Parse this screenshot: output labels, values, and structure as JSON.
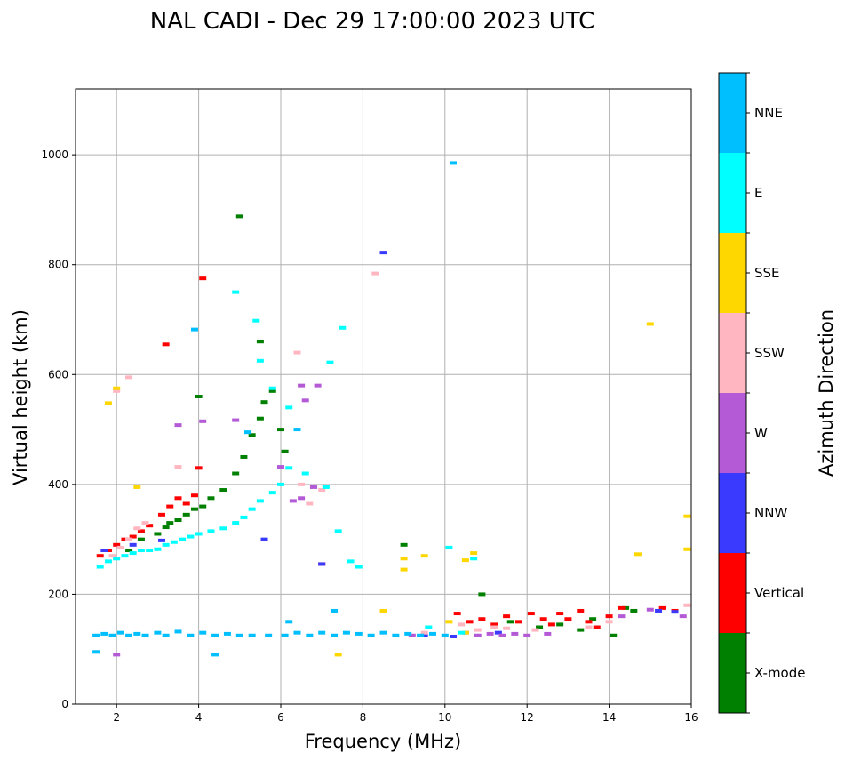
{
  "chart_data": {
    "type": "scatter",
    "title": "NAL CADI - Dec 29 17:00:00 2023 UTC",
    "xlabel": "Frequency (MHz)",
    "ylabel": "Virtual height (km)",
    "xlim": [
      1,
      16
    ],
    "ylim": [
      0,
      1120
    ],
    "x_ticks": [
      2,
      4,
      6,
      8,
      10,
      12,
      14,
      16
    ],
    "y_ticks": [
      0,
      200,
      400,
      600,
      800,
      1000
    ],
    "grid": true,
    "colorbar": {
      "label": "Azimuth Direction",
      "categories": [
        {
          "name": "X-mode",
          "color": "#008000"
        },
        {
          "name": "Vertical",
          "color": "#ff0000"
        },
        {
          "name": "NNW",
          "color": "#3a3aff"
        },
        {
          "name": "W",
          "color": "#b45ad6"
        },
        {
          "name": "SSW",
          "color": "#ffb6c1"
        },
        {
          "name": "SSE",
          "color": "#ffd700"
        },
        {
          "name": "E",
          "color": "#00ffff"
        },
        {
          "name": "NNE",
          "color": "#00bfff"
        }
      ]
    },
    "series": [
      {
        "name": "X-mode",
        "points": [
          [
            3.3,
            330
          ],
          [
            3.5,
            335
          ],
          [
            3.7,
            345
          ],
          [
            3.9,
            355
          ],
          [
            4.1,
            360
          ],
          [
            4.3,
            375
          ],
          [
            4.6,
            390
          ],
          [
            4.9,
            420
          ],
          [
            5.1,
            450
          ],
          [
            5.3,
            490
          ],
          [
            5.5,
            520
          ],
          [
            5.6,
            550
          ],
          [
            5.8,
            570
          ],
          [
            6.0,
            500
          ],
          [
            6.1,
            460
          ],
          [
            3.0,
            310
          ],
          [
            3.2,
            322
          ],
          [
            10.9,
            200
          ],
          [
            11.6,
            150
          ],
          [
            12.3,
            140
          ],
          [
            12.8,
            145
          ],
          [
            13.3,
            135
          ],
          [
            13.6,
            155
          ],
          [
            14.1,
            125
          ],
          [
            14.4,
            175
          ],
          [
            14.6,
            170
          ],
          [
            9.0,
            290
          ],
          [
            4.0,
            560
          ],
          [
            5.0,
            888
          ],
          [
            5.5,
            660
          ],
          [
            2.3,
            280
          ],
          [
            2.6,
            300
          ]
        ]
      },
      {
        "name": "Vertical",
        "points": [
          [
            1.6,
            270
          ],
          [
            1.8,
            280
          ],
          [
            2.0,
            290
          ],
          [
            2.2,
            300
          ],
          [
            2.4,
            305
          ],
          [
            2.6,
            315
          ],
          [
            2.8,
            325
          ],
          [
            3.1,
            345
          ],
          [
            3.3,
            360
          ],
          [
            3.5,
            375
          ],
          [
            3.7,
            365
          ],
          [
            3.9,
            380
          ],
          [
            4.0,
            430
          ],
          [
            4.1,
            775
          ],
          [
            3.2,
            655
          ],
          [
            10.3,
            165
          ],
          [
            10.6,
            150
          ],
          [
            10.9,
            155
          ],
          [
            11.2,
            145
          ],
          [
            11.5,
            160
          ],
          [
            11.8,
            150
          ],
          [
            12.1,
            165
          ],
          [
            12.4,
            155
          ],
          [
            12.6,
            145
          ],
          [
            12.8,
            165
          ],
          [
            13.0,
            155
          ],
          [
            13.3,
            170
          ],
          [
            13.5,
            150
          ],
          [
            13.7,
            140
          ],
          [
            14.0,
            160
          ],
          [
            14.3,
            175
          ],
          [
            15.3,
            175
          ],
          [
            15.6,
            170
          ],
          [
            7.0,
            255
          ]
        ]
      },
      {
        "name": "NNW",
        "points": [
          [
            1.7,
            280
          ],
          [
            2.4,
            290
          ],
          [
            8.5,
            822
          ],
          [
            7.0,
            255
          ],
          [
            15.2,
            170
          ],
          [
            15.6,
            168
          ],
          [
            9.5,
            125
          ],
          [
            10.2,
            123
          ],
          [
            11.3,
            130
          ],
          [
            3.1,
            298
          ],
          [
            5.6,
            300
          ]
        ]
      },
      {
        "name": "W",
        "points": [
          [
            3.5,
            508
          ],
          [
            4.1,
            515
          ],
          [
            6.5,
            580
          ],
          [
            6.6,
            553
          ],
          [
            6.8,
            395
          ],
          [
            6.5,
            375
          ],
          [
            6.9,
            580
          ],
          [
            10.5,
            130
          ],
          [
            10.8,
            125
          ],
          [
            11.1,
            128
          ],
          [
            11.4,
            125
          ],
          [
            11.7,
            128
          ],
          [
            12.0,
            125
          ],
          [
            12.5,
            128
          ],
          [
            14.3,
            160
          ],
          [
            15.0,
            172
          ],
          [
            15.8,
            160
          ],
          [
            9.2,
            125
          ],
          [
            2.0,
            90
          ],
          [
            4.9,
            517
          ],
          [
            6.0,
            432
          ],
          [
            6.3,
            370
          ]
        ]
      },
      {
        "name": "SSW",
        "points": [
          [
            1.9,
            270
          ],
          [
            2.1,
            285
          ],
          [
            2.3,
            300
          ],
          [
            2.5,
            320
          ],
          [
            2.7,
            330
          ],
          [
            2.3,
            595
          ],
          [
            3.5,
            432
          ],
          [
            6.5,
            400
          ],
          [
            7.0,
            390
          ],
          [
            8.3,
            784
          ],
          [
            6.4,
            640
          ],
          [
            6.7,
            365
          ],
          [
            10.4,
            145
          ],
          [
            10.8,
            135
          ],
          [
            11.2,
            140
          ],
          [
            11.5,
            138
          ],
          [
            12.2,
            135
          ],
          [
            13.5,
            140
          ],
          [
            14.0,
            150
          ],
          [
            15.9,
            180
          ],
          [
            9.5,
            130
          ],
          [
            2.0,
            570
          ]
        ]
      },
      {
        "name": "SSE",
        "points": [
          [
            1.8,
            548
          ],
          [
            2.0,
            575
          ],
          [
            2.5,
            395
          ],
          [
            8.5,
            170
          ],
          [
            9.0,
            265
          ],
          [
            9.0,
            245
          ],
          [
            9.5,
            270
          ],
          [
            10.5,
            262
          ],
          [
            10.7,
            275
          ],
          [
            14.7,
            273
          ],
          [
            15.0,
            692
          ],
          [
            15.9,
            342
          ],
          [
            15.9,
            282
          ],
          [
            7.4,
            90
          ],
          [
            10.5,
            130
          ],
          [
            10.1,
            150
          ]
        ]
      },
      {
        "name": "E",
        "points": [
          [
            1.6,
            250
          ],
          [
            1.8,
            260
          ],
          [
            2.0,
            265
          ],
          [
            2.2,
            270
          ],
          [
            2.4,
            275
          ],
          [
            2.6,
            280
          ],
          [
            2.8,
            280
          ],
          [
            3.0,
            282
          ],
          [
            3.2,
            290
          ],
          [
            3.4,
            295
          ],
          [
            3.6,
            300
          ],
          [
            3.8,
            305
          ],
          [
            4.0,
            310
          ],
          [
            4.3,
            315
          ],
          [
            4.6,
            320
          ],
          [
            4.9,
            330
          ],
          [
            5.1,
            340
          ],
          [
            5.3,
            355
          ],
          [
            5.5,
            370
          ],
          [
            5.8,
            385
          ],
          [
            6.0,
            400
          ],
          [
            6.2,
            430
          ],
          [
            6.6,
            420
          ],
          [
            7.1,
            395
          ],
          [
            7.4,
            315
          ],
          [
            7.7,
            260
          ],
          [
            7.9,
            250
          ],
          [
            10.1,
            285
          ],
          [
            10.7,
            265
          ],
          [
            5.4,
            698
          ],
          [
            5.5,
            625
          ],
          [
            4.9,
            750
          ],
          [
            7.5,
            685
          ],
          [
            7.2,
            622
          ],
          [
            5.8,
            575
          ],
          [
            6.2,
            540
          ],
          [
            10.4,
            130
          ],
          [
            9.6,
            140
          ]
        ]
      },
      {
        "name": "NNE",
        "points": [
          [
            1.5,
            125
          ],
          [
            1.7,
            128
          ],
          [
            1.9,
            125
          ],
          [
            2.1,
            130
          ],
          [
            2.3,
            125
          ],
          [
            2.5,
            128
          ],
          [
            2.7,
            125
          ],
          [
            3.0,
            130
          ],
          [
            3.2,
            125
          ],
          [
            3.5,
            132
          ],
          [
            3.8,
            125
          ],
          [
            4.1,
            130
          ],
          [
            4.4,
            125
          ],
          [
            4.7,
            128
          ],
          [
            5.0,
            125
          ],
          [
            5.3,
            125
          ],
          [
            5.7,
            125
          ],
          [
            6.1,
            125
          ],
          [
            6.4,
            130
          ],
          [
            6.7,
            125
          ],
          [
            7.0,
            130
          ],
          [
            7.3,
            125
          ],
          [
            7.6,
            130
          ],
          [
            7.9,
            128
          ],
          [
            8.2,
            125
          ],
          [
            8.5,
            130
          ],
          [
            8.8,
            125
          ],
          [
            9.1,
            128
          ],
          [
            9.4,
            125
          ],
          [
            9.7,
            128
          ],
          [
            10.0,
            125
          ],
          [
            10.2,
            985
          ],
          [
            3.9,
            682
          ],
          [
            5.2,
            495
          ],
          [
            6.4,
            500
          ],
          [
            1.5,
            95
          ],
          [
            4.4,
            90
          ],
          [
            6.2,
            150
          ],
          [
            7.3,
            170
          ]
        ]
      }
    ]
  }
}
